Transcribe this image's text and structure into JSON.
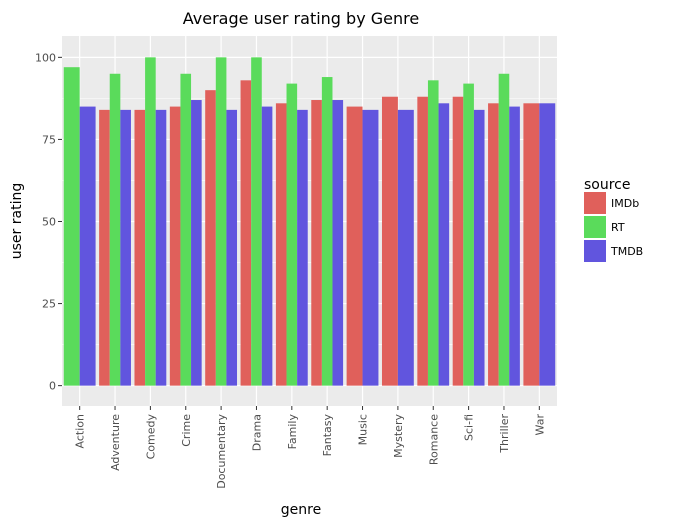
{
  "chart_data": {
    "type": "bar",
    "title": "Average user rating by Genre",
    "xlabel": "genre",
    "ylabel": "user rating",
    "categories": [
      "Action",
      "Adventure",
      "Comedy",
      "Crime",
      "Documentary",
      "Drama",
      "Family",
      "Fantasy",
      "Music",
      "Mystery",
      "Romance",
      "Sci-fi",
      "Thriller",
      "War"
    ],
    "series": [
      {
        "name": "IMDb",
        "color": "#E0605B",
        "values": [
          null,
          84,
          84,
          85,
          90,
          93,
          86,
          87,
          85,
          88,
          88,
          88,
          86,
          86
        ]
      },
      {
        "name": "RT",
        "color": "#5ADB5B",
        "values": [
          97,
          95,
          100,
          95,
          100,
          100,
          92,
          94,
          null,
          null,
          93,
          92,
          95,
          null
        ]
      },
      {
        "name": "TMDB",
        "color": "#6155DE",
        "values": [
          85,
          84,
          84,
          87,
          84,
          85,
          84,
          87,
          84,
          84,
          86,
          84,
          85,
          86
        ]
      }
    ],
    "ylim": [
      -6.2,
      106.5
    ],
    "yticks": [
      0,
      25,
      50,
      75,
      100
    ],
    "ytick_labels": [
      "0",
      "25",
      "50",
      "75",
      "100"
    ],
    "legend": {
      "title": "source",
      "position": "right"
    },
    "grid": true
  }
}
